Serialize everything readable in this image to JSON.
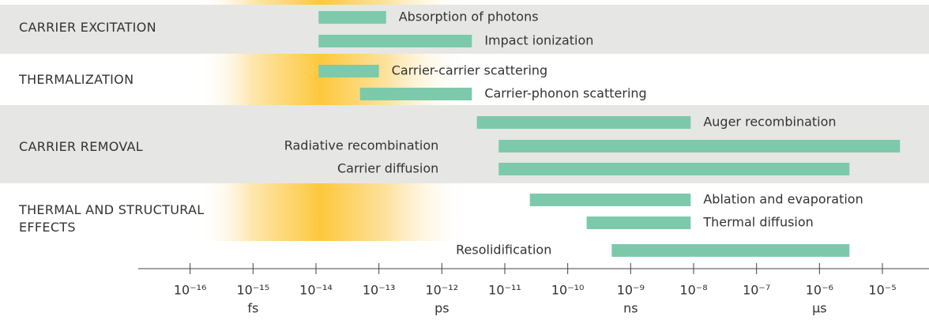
{
  "chart_data": {
    "type": "range_bar",
    "color": "#7ccaab",
    "xscale": "log",
    "xlim": [
      1.5e-17,
      5.5e-05
    ],
    "xticks": [
      {
        "value": 1e-16,
        "label": "10⁻¹⁶"
      },
      {
        "value": 1e-15,
        "label": "10⁻¹⁵"
      },
      {
        "value": 1e-14,
        "label": "10⁻¹⁴"
      },
      {
        "value": 1e-13,
        "label": "10⁻¹³"
      },
      {
        "value": 1e-12,
        "label": "10⁻¹²"
      },
      {
        "value": 1e-11,
        "label": "10⁻¹¹"
      },
      {
        "value": 1e-10,
        "label": "10⁻¹⁰"
      },
      {
        "value": 1e-09,
        "label": "10⁻⁹"
      },
      {
        "value": 1e-08,
        "label": "10⁻⁸"
      },
      {
        "value": 1e-07,
        "label": "10⁻⁷"
      },
      {
        "value": 1e-06,
        "label": "10⁻⁶"
      },
      {
        "value": 1e-05,
        "label": "10⁻⁵"
      }
    ],
    "unit_labels": [
      {
        "value": 1e-15,
        "label": "fs"
      },
      {
        "value": 1e-12,
        "label": "ps"
      },
      {
        "value": 1e-09,
        "label": "ns"
      },
      {
        "value": 1e-06,
        "label": "µs"
      }
    ],
    "groups": [
      {
        "name": "CARRIER EXCITATION",
        "bars": [
          {
            "label": "Absorption of photons",
            "start": 1.1e-14,
            "end": 1.3e-13
          },
          {
            "label": "Impact ionization",
            "start": 1.1e-14,
            "end": 3e-12
          }
        ]
      },
      {
        "name": "THERMALIZATION",
        "bars": [
          {
            "label": "Carrier-carrier scattering",
            "start": 1.1e-14,
            "end": 1e-13
          },
          {
            "label": "Carrier-phonon scattering",
            "start": 5e-14,
            "end": 3e-12
          }
        ]
      },
      {
        "name": "CARRIER REMOVAL",
        "bars": [
          {
            "label": "Auger recombination",
            "start": 3.6e-12,
            "end": 9e-09
          },
          {
            "label": "Radiative recombination",
            "start": 8e-12,
            "end": 1.9e-05
          },
          {
            "label": "Carrier diffusion",
            "start": 8e-12,
            "end": 3e-06
          }
        ]
      },
      {
        "name": "THERMAL AND STRUCTURAL EFFECTS",
        "bars": [
          {
            "label": "Ablation and evaporation",
            "start": 2.5e-11,
            "end": 9e-09
          },
          {
            "label": "Thermal diffusion",
            "start": 2e-10,
            "end": 9e-09
          },
          {
            "label": "Resolidification",
            "start": 5e-10,
            "end": 3e-06
          }
        ]
      }
    ]
  }
}
